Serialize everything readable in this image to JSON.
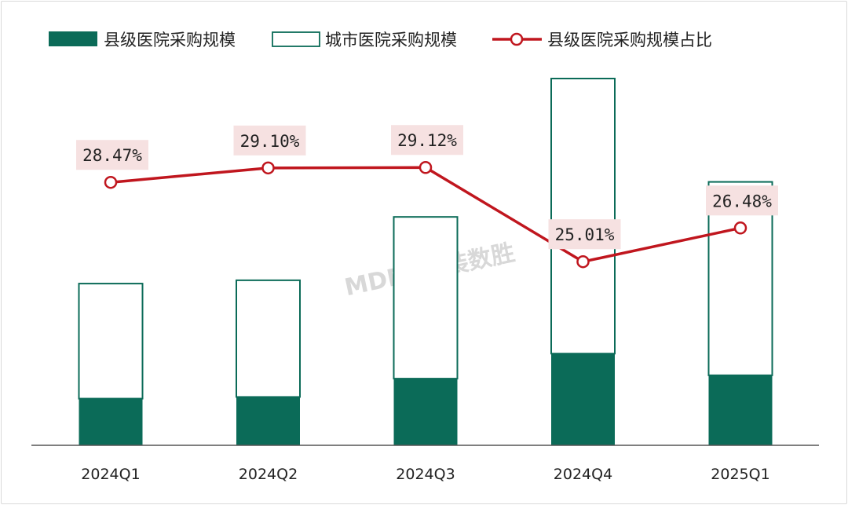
{
  "chart_data": {
    "type": "bar",
    "categories": [
      "2024Q1",
      "2024Q2",
      "2024Q3",
      "2024Q4",
      "2025Q1"
    ],
    "series": [
      {
        "name": "县级医院采购规模",
        "kind": "bar-stack",
        "color": "#0b6b58",
        "values": [
          28,
          29,
          40,
          55,
          42
        ]
      },
      {
        "name": "城市医院采购规模",
        "kind": "bar-stack-outline",
        "color": "#0b6b58",
        "values": [
          69,
          70,
          97,
          165,
          116
        ]
      },
      {
        "name": "县级医院采购规模占比",
        "kind": "line",
        "color": "#c0161e",
        "values": [
          28.47,
          29.1,
          29.12,
          25.01,
          26.48
        ],
        "labels": [
          "28.47%",
          "29.10%",
          "29.12%",
          "25.01%",
          "26.48%"
        ]
      }
    ],
    "bar_ylim": [
      0,
      220
    ],
    "line_ylim": [
      17,
      33
    ],
    "title": "",
    "xlabel": "",
    "ylabel": "",
    "grid": false,
    "legend": "top"
  },
  "watermark": "MDDi 医装数胜"
}
